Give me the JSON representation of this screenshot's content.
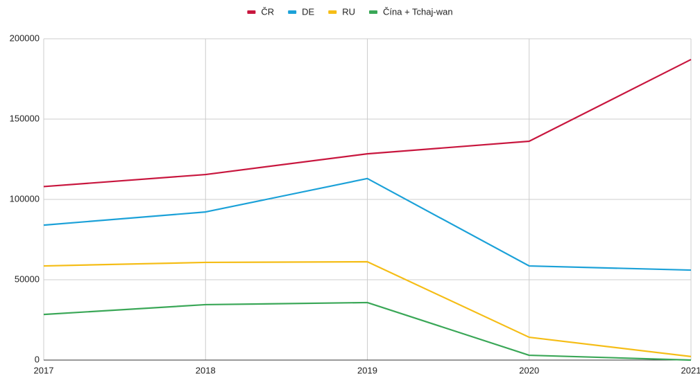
{
  "chart_data": {
    "type": "line",
    "x": [
      2017,
      2018,
      2019,
      2020,
      2021
    ],
    "series": [
      {
        "name": "ČR",
        "color": "#c8163e",
        "values": [
          108000,
          115500,
          128400,
          136200,
          187100
        ]
      },
      {
        "name": "DE",
        "color": "#1ba1d8",
        "values": [
          84000,
          92200,
          113000,
          58600,
          56000
        ]
      },
      {
        "name": "RU",
        "color": "#f5bd16",
        "values": [
          58600,
          60800,
          61200,
          14200,
          2200
        ]
      },
      {
        "name": "Čína + Tchaj-wan",
        "color": "#3aa757",
        "values": [
          28400,
          34500,
          35800,
          3000,
          0
        ]
      }
    ],
    "xlim": [
      2017,
      2021
    ],
    "xticks": [
      2017,
      2018,
      2019,
      2020,
      2021
    ],
    "ylim": [
      0,
      200000
    ],
    "yticks": [
      0,
      50000,
      100000,
      150000,
      200000
    ],
    "grid": true,
    "legend": "top"
  }
}
